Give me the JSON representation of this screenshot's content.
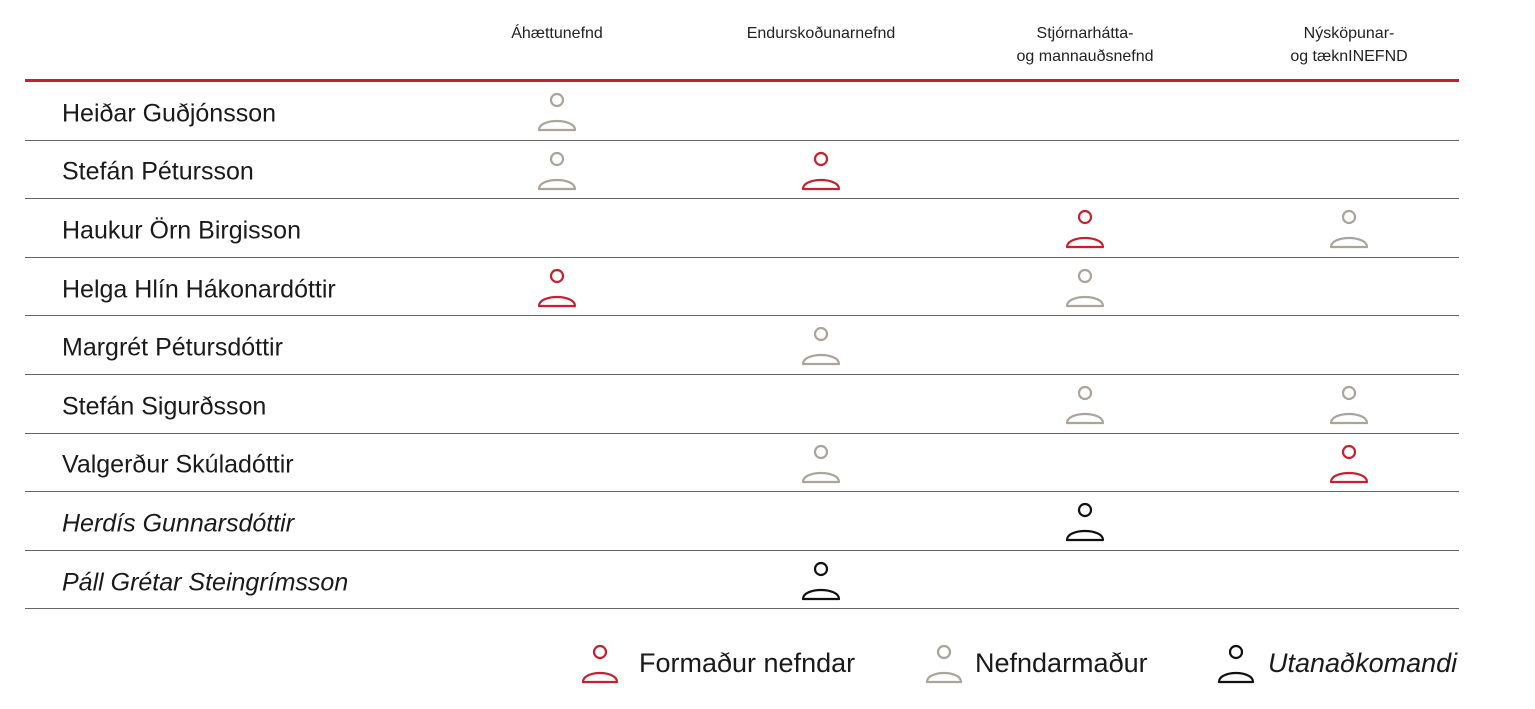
{
  "columns": [
    {
      "id": "ahaettunefnd",
      "lines": [
        "Áhættunefnd"
      ]
    },
    {
      "id": "endurskodunarnefnd",
      "lines": [
        "Endurskoðunarnefnd"
      ]
    },
    {
      "id": "stjornarhatta",
      "lines": [
        "Stjórnarhátta-",
        "og mannauðsnefnd"
      ]
    },
    {
      "id": "nyskopunar",
      "lines": [
        "Nýsköpunar-",
        "og tæknINEFND"
      ]
    }
  ],
  "rows": [
    {
      "name": "Heiðar Guðjónsson",
      "italic": false,
      "roles": [
        "member",
        null,
        null,
        null
      ]
    },
    {
      "name": "Stefán Pétursson",
      "italic": false,
      "roles": [
        "member",
        "chair",
        null,
        null
      ]
    },
    {
      "name": "Haukur Örn Birgisson",
      "italic": false,
      "roles": [
        null,
        null,
        "chair",
        "member"
      ]
    },
    {
      "name": "Helga Hlín Hákonardóttir",
      "italic": false,
      "roles": [
        "chair",
        null,
        "member",
        null
      ]
    },
    {
      "name": "Margrét Pétursdóttir",
      "italic": false,
      "roles": [
        null,
        "member",
        null,
        null
      ]
    },
    {
      "name": "Stefán Sigurðsson",
      "italic": false,
      "roles": [
        null,
        null,
        "member",
        "member"
      ]
    },
    {
      "name": "Valgerður Skúladóttir",
      "italic": false,
      "roles": [
        null,
        "member",
        null,
        "chair"
      ]
    },
    {
      "name": "Herdís Gunnarsdóttir",
      "italic": true,
      "roles": [
        null,
        null,
        "external",
        null
      ]
    },
    {
      "name": "Páll Grétar Steingrímsson",
      "italic": true,
      "roles": [
        null,
        "external",
        null,
        null
      ]
    }
  ],
  "legend": {
    "chair_label": "Formaður nefndar",
    "member_label": "Nefndarmaður",
    "external_label": "Utanaðkomandi"
  },
  "colors": {
    "chair": "#c8202f",
    "member": "#a9a49c",
    "external": "#111111",
    "accent_line": "#c8202f"
  },
  "icon": "person-outline-icon"
}
